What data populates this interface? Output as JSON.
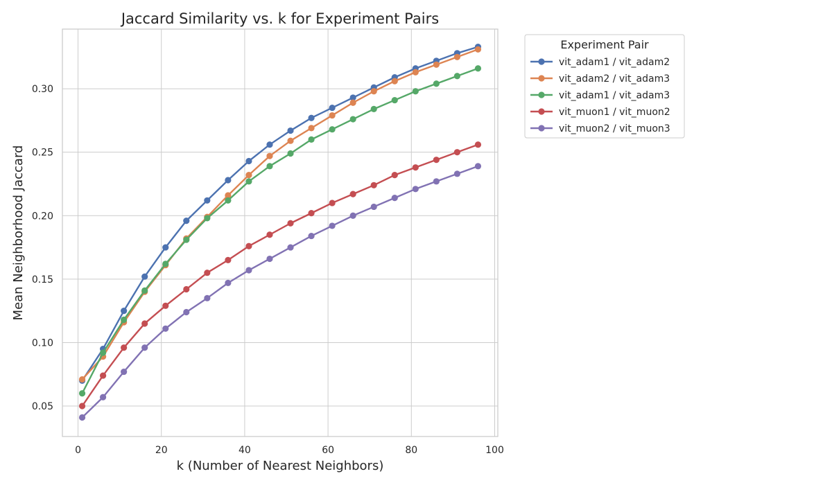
{
  "chart_data": {
    "type": "line",
    "title": "Jaccard Similarity vs. k for Experiment Pairs",
    "xlabel": "k (Number of Nearest Neighbors)",
    "ylabel": "Mean Neighborhood Jaccard",
    "xlim": [
      -3.75,
      100.75
    ],
    "ylim": [
      0.026,
      0.347
    ],
    "xticks": [
      0,
      20,
      40,
      60,
      80,
      100
    ],
    "xtick_labels": [
      "0",
      "20",
      "40",
      "60",
      "80",
      "100"
    ],
    "yticks": [
      0.05,
      0.1,
      0.15,
      0.2,
      0.25,
      0.3
    ],
    "ytick_labels": [
      "0.05",
      "0.10",
      "0.15",
      "0.20",
      "0.25",
      "0.30"
    ],
    "grid": true,
    "legend": {
      "title": "Experiment Pair",
      "placement": "outside-top-right"
    },
    "x": [
      1,
      6,
      11,
      16,
      21,
      26,
      31,
      36,
      41,
      46,
      51,
      56,
      61,
      66,
      71,
      76,
      81,
      86,
      91,
      96
    ],
    "series": [
      {
        "name": "vit_adam1 / vit_adam2",
        "color": "#4c72b0",
        "values": [
          0.07,
          0.095,
          0.125,
          0.152,
          0.175,
          0.196,
          0.212,
          0.228,
          0.243,
          0.256,
          0.267,
          0.277,
          0.285,
          0.293,
          0.301,
          0.309,
          0.316,
          0.322,
          0.328,
          0.333
        ]
      },
      {
        "name": "vit_adam2 / vit_adam3",
        "color": "#dd8452",
        "values": [
          0.071,
          0.089,
          0.116,
          0.14,
          0.161,
          0.182,
          0.199,
          0.216,
          0.232,
          0.247,
          0.259,
          0.269,
          0.279,
          0.289,
          0.298,
          0.306,
          0.313,
          0.319,
          0.325,
          0.331
        ]
      },
      {
        "name": "vit_adam1 / vit_adam3",
        "color": "#55a868",
        "values": [
          0.06,
          0.092,
          0.118,
          0.141,
          0.162,
          0.181,
          0.198,
          0.212,
          0.227,
          0.239,
          0.249,
          0.26,
          0.268,
          0.276,
          0.284,
          0.291,
          0.298,
          0.304,
          0.31,
          0.316
        ]
      },
      {
        "name": "vit_muon1 / vit_muon2",
        "color": "#c44e52",
        "values": [
          0.05,
          0.074,
          0.096,
          0.115,
          0.129,
          0.142,
          0.155,
          0.165,
          0.176,
          0.185,
          0.194,
          0.202,
          0.21,
          0.217,
          0.224,
          0.232,
          0.238,
          0.244,
          0.25,
          0.256
        ]
      },
      {
        "name": "vit_muon2 / vit_muon3",
        "color": "#8172b3",
        "values": [
          0.041,
          0.057,
          0.077,
          0.096,
          0.111,
          0.124,
          0.135,
          0.147,
          0.157,
          0.166,
          0.175,
          0.184,
          0.192,
          0.2,
          0.207,
          0.214,
          0.221,
          0.227,
          0.233,
          0.239
        ]
      }
    ]
  }
}
